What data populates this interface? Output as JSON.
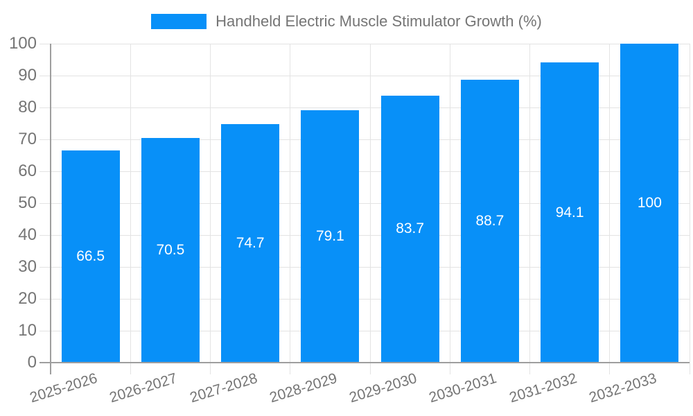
{
  "chart_data": {
    "type": "bar",
    "title": "Handheld Electric Muscle Stimulator Growth (%)",
    "categories": [
      "2025-2026",
      "2026-2027",
      "2027-2028",
      "2028-2029",
      "2029-2030",
      "2030-2031",
      "2031-2032",
      "2032-2033"
    ],
    "series": [
      {
        "name": "Handheld Electric Muscle Stimulator Growth (%)",
        "values": [
          66.5,
          70.5,
          74.7,
          79.1,
          83.7,
          88.7,
          94.1,
          100
        ]
      }
    ],
    "value_labels": [
      "66.5",
      "70.5",
      "74.7",
      "79.1",
      "83.7",
      "88.7",
      "94.1",
      "100"
    ],
    "xlabel": "",
    "ylabel": "",
    "ylim": [
      0,
      100
    ],
    "yticks": [
      0,
      10,
      20,
      30,
      40,
      50,
      60,
      70,
      80,
      90,
      100
    ],
    "grid": true,
    "legend_position": "top",
    "x_tick_rotation_deg": -17,
    "colors": {
      "bar": "#0890F8",
      "grid": "#e3e3e3",
      "axis": "#9e9e9e",
      "tick_label": "#757575",
      "value_label": "#ffffff",
      "background": "#ffffff"
    }
  }
}
